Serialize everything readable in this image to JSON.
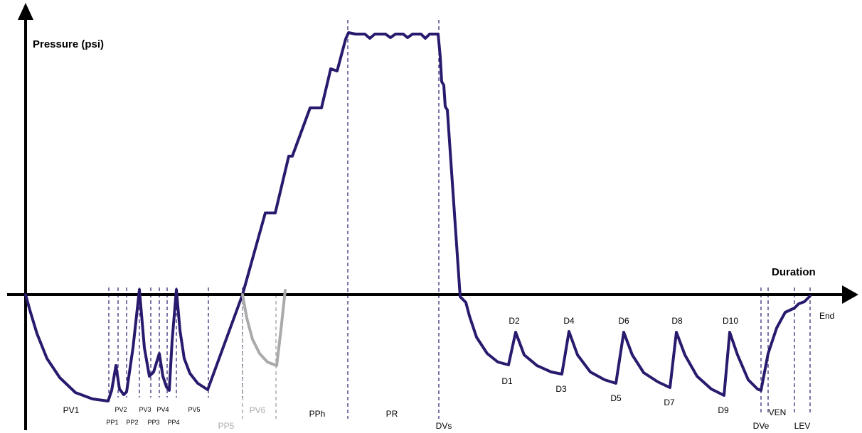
{
  "chart_data": {
    "type": "line",
    "title": "",
    "ylabel": "Pressure (psi)",
    "xlabel": "Duration",
    "end_label": "End",
    "colors": {
      "main": "#2a1a6e",
      "alternate": "#aaaaaa",
      "axis": "#000000",
      "divider_dark": "#2a1a6e",
      "divider_grey": "#9a9a9a"
    },
    "series": [
      {
        "color": "#2a1a6e",
        "points": [
          [
            36,
            415
          ],
          [
            42,
            437
          ],
          [
            52,
            470
          ],
          [
            66,
            505
          ],
          [
            84,
            532
          ],
          [
            106,
            553
          ],
          [
            130,
            562
          ],
          [
            152,
            565
          ],
          [
            157,
            550
          ],
          [
            163,
            515
          ],
          [
            168,
            548
          ],
          [
            174,
            556
          ],
          [
            178,
            552
          ],
          [
            187,
            490
          ],
          [
            196,
            408
          ],
          [
            203,
            490
          ],
          [
            210,
            530
          ],
          [
            216,
            524
          ],
          [
            224,
            498
          ],
          [
            229,
            530
          ],
          [
            234,
            545
          ],
          [
            238,
            550
          ],
          [
            242,
            480
          ],
          [
            248,
            408
          ],
          [
            253,
            465
          ],
          [
            259,
            505
          ],
          [
            267,
            526
          ],
          [
            278,
            540
          ],
          [
            292,
            549
          ],
          [
            341,
            415
          ],
          [
            373,
            300
          ],
          [
            387,
            300
          ],
          [
            406,
            220
          ],
          [
            411,
            220
          ],
          [
            436,
            152
          ],
          [
            452,
            152
          ],
          [
            465,
            97
          ],
          [
            474,
            100
          ],
          [
            486,
            55
          ],
          [
            490,
            46
          ],
          [
            500,
            48
          ],
          [
            513,
            48
          ],
          [
            520,
            54
          ],
          [
            527,
            48
          ],
          [
            542,
            48
          ],
          [
            549,
            53
          ],
          [
            556,
            48
          ],
          [
            567,
            48
          ],
          [
            573,
            53
          ],
          [
            580,
            48
          ],
          [
            592,
            48
          ],
          [
            598,
            54
          ],
          [
            604,
            48
          ],
          [
            616,
            48
          ],
          [
            619,
            80
          ],
          [
            621,
            115
          ],
          [
            624,
            120
          ],
          [
            626,
            150
          ],
          [
            629,
            155
          ],
          [
            647,
            418
          ],
          [
            655,
            426
          ],
          [
            660,
            445
          ],
          [
            670,
            475
          ],
          [
            685,
            498
          ],
          [
            700,
            510
          ],
          [
            715,
            514
          ],
          [
            725,
            468
          ],
          [
            737,
            500
          ],
          [
            755,
            515
          ],
          [
            775,
            524
          ],
          [
            790,
            527
          ],
          [
            800,
            467
          ],
          [
            812,
            500
          ],
          [
            830,
            524
          ],
          [
            850,
            535
          ],
          [
            866,
            540
          ],
          [
            877,
            468
          ],
          [
            889,
            500
          ],
          [
            905,
            525
          ],
          [
            925,
            538
          ],
          [
            942,
            546
          ],
          [
            951,
            468
          ],
          [
            963,
            500
          ],
          [
            980,
            530
          ],
          [
            1000,
            548
          ],
          [
            1018,
            557
          ],
          [
            1026,
            468
          ],
          [
            1037,
            500
          ],
          [
            1052,
            535
          ],
          [
            1065,
            548
          ],
          [
            1070,
            550
          ],
          [
            1080,
            498
          ],
          [
            1092,
            462
          ],
          [
            1104,
            440
          ],
          [
            1117,
            434
          ],
          [
            1123,
            428
          ],
          [
            1131,
            425
          ],
          [
            1139,
            417
          ]
        ]
      },
      {
        "color": "#aaaaaa",
        "points": [
          [
            341,
            415
          ],
          [
            347,
            448
          ],
          [
            355,
            478
          ],
          [
            365,
            498
          ],
          [
            376,
            510
          ],
          [
            389,
            515
          ],
          [
            395,
            465
          ],
          [
            401,
            409
          ]
        ]
      }
    ],
    "phase_labels_large": [
      {
        "text": "PV1",
        "tone": "dark"
      },
      {
        "text": "PV6",
        "tone": "grey"
      },
      {
        "text": "PPh",
        "tone": "dark"
      },
      {
        "text": "PR",
        "tone": "dark"
      },
      {
        "text": "DVs",
        "tone": "dark"
      },
      {
        "text": "PP5",
        "tone": "grey"
      },
      {
        "text": "DVe",
        "tone": "dark"
      },
      {
        "text": "VEN",
        "tone": "dark"
      },
      {
        "text": "LEV",
        "tone": "dark"
      }
    ],
    "phase_labels_small": [
      "PV2",
      "PV3",
      "PV4",
      "PV5",
      "PP1",
      "PP2",
      "PP3",
      "PP4"
    ],
    "point_labels": [
      "D1",
      "D2",
      "D3",
      "D4",
      "D5",
      "D6",
      "D7",
      "D8",
      "D9",
      "D10"
    ],
    "divider_tones": [
      "dark",
      "dark",
      "dark",
      "dark",
      "dark",
      "dark",
      "dark",
      "dark",
      "dark",
      "dark",
      "grey",
      "grey",
      "dark",
      "dark",
      "dark",
      "dark",
      "dark",
      "dark"
    ]
  }
}
